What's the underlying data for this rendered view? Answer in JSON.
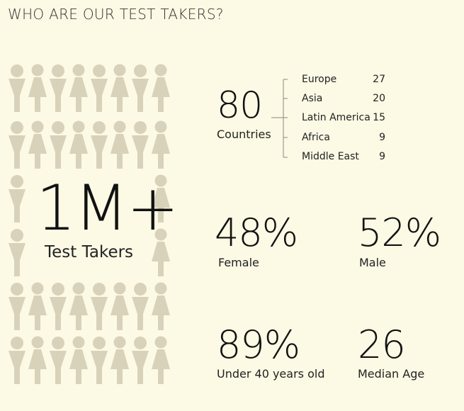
{
  "header": {
    "title": "WHO ARE OUR TEST TAKERS?"
  },
  "colors": {
    "background": "#fcf9e4",
    "figure": "#d9d2bb",
    "text": "#1e1e1e"
  },
  "total": {
    "value": "1M+",
    "label": "Test Takers"
  },
  "countries": {
    "value": "80",
    "label": "Countries",
    "regions": [
      {
        "name": "Europe",
        "count": "27"
      },
      {
        "name": "Asia",
        "count": "20"
      },
      {
        "name": "Latin America",
        "count": "15"
      },
      {
        "name": "Africa",
        "count": "9"
      },
      {
        "name": "Middle East",
        "count": "9"
      }
    ]
  },
  "gender": {
    "female": {
      "value": "48%",
      "label": "Female"
    },
    "male": {
      "value": "52%",
      "label": "Male"
    }
  },
  "age": {
    "under40": {
      "value": "89%",
      "label": "Under 40 years old"
    },
    "median": {
      "value": "26",
      "label": "Median Age"
    }
  }
}
